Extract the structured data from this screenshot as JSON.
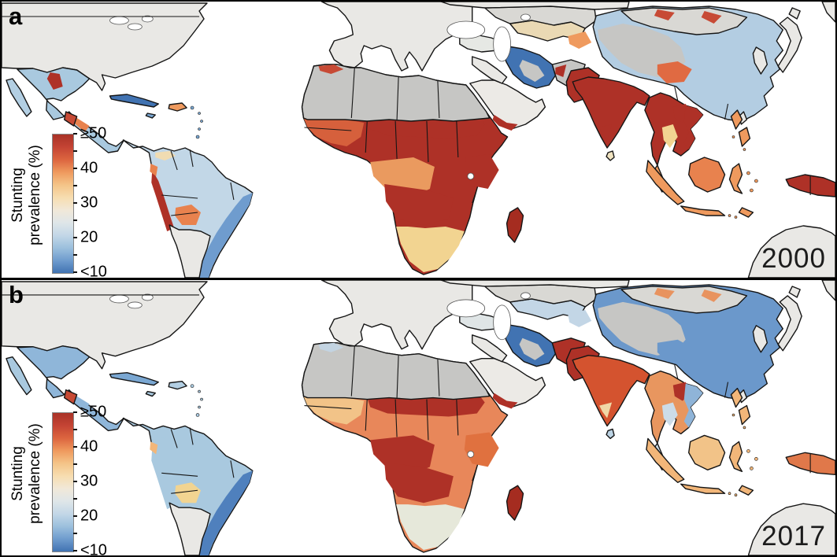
{
  "figure": {
    "background": "#ffffff",
    "border_color": "#000000",
    "stroke_color": "#151515",
    "colorbar_stops": [
      "#a93227",
      "#c44434",
      "#dc653f",
      "#ef9a5e",
      "#f4c488",
      "#f7ddb0",
      "#f1e8d8",
      "#dfe6e8",
      "#c3d7e7",
      "#9cc0dd",
      "#6f9cce",
      "#4173b2"
    ]
  },
  "panels": [
    {
      "label": "a",
      "year": "2000",
      "legend": {
        "title_line1": "Stunting",
        "title_line2": "prevalence (%)",
        "ticks": [
          "≥50",
          "40",
          "30",
          "20",
          "<10"
        ]
      },
      "fills": {
        "ocean": "#ffffff",
        "canada_usa": "#e9e8e5",
        "mexico": "#a9c9df",
        "baja": "#b3cfe3",
        "mex_patch_north": "#ae3127",
        "mex_south": "#e8824e",
        "guatemala": "#c74a35",
        "cuba": "#4173b2",
        "hispaniola": "#ef9a5e",
        "jamaica": "#7aa7d2",
        "antilles": "#7aa7d2",
        "sa_base": "#c2d7e7",
        "venezuela_patch": "#f0dcb2",
        "brazil_east": "#6f9cce",
        "peru": "#ae3127",
        "bolivia": "#e8824e",
        "ecuador": "#e8824e",
        "southern_cone": "#e9e8e5",
        "europe": "#e9e8e5",
        "africa_base": "#ae3127",
        "w_africa": "#d6603c",
        "drc": "#ea9a5f",
        "angola_zambia": "#ae3127",
        "east_africa": "#ae3127",
        "south_band": "#f2d491",
        "sahel_red": "#ae3127",
        "sahara": "#c6c6c4",
        "atlas": "#c74a35",
        "madagascar": "#a52c20",
        "arabia": "#eceae6",
        "yemen": "#ae3127",
        "iraq": "#e9e8e5",
        "turkey": "#e6e8e4",
        "iran": "#4173b2",
        "iran_mask": "#c6c6c4",
        "central_asia": "#ead9b4",
        "ca_orange": "#ef9a5e",
        "kaz": "#d9d8d4",
        "russia_w": "#e9e8e5",
        "russia_ne": "#e9e8e5",
        "china": "#b3cde2",
        "tibet_mask": "#c6c6c4",
        "china_patch": "#e06a42",
        "mongolia": "#d9d8d4",
        "mongolia_red": "#c74a35",
        "korea": "#e9e8e5",
        "japan": "#e9e8e5",
        "taiwan": "#e9e8e5",
        "afghanistan": "#c6c6c4",
        "afg_red": "#ae3127",
        "pakistan": "#ae3127",
        "india": "#ae3127",
        "india_south": "#ae3127",
        "sri_lanka": "#f0e3c0",
        "sea_mainland": "#ae3127",
        "laos": "#ae3127",
        "vietnam": "#ae3127",
        "thailand": "#f2d491",
        "malay_pen": "#ef9a5e",
        "sumatra": "#ef9a5e",
        "java": "#ef9a5e",
        "borneo": "#e8824e",
        "sulawesi": "#ef9a5e",
        "timor": "#ef9a5e",
        "philippines": "#ef9a5e",
        "png": "#ae3127",
        "australia": "#e9e8e5"
      }
    },
    {
      "label": "b",
      "year": "2017",
      "legend": {
        "title_line1": "Stunting",
        "title_line2": "prevalence (%)",
        "ticks": [
          "≥50",
          "40",
          "30",
          "20",
          "<10"
        ]
      },
      "fills": {
        "ocean": "#ffffff",
        "canada_usa": "#e9e8e5",
        "mexico": "#8fb6d9",
        "baja": "#a9c9df",
        "mex_patch_north": "#8fb6d9",
        "mex_south": "#8fb6d9",
        "guatemala": "#c74a35",
        "cuba": "#7aa7d2",
        "hispaniola": "#b3cfe3",
        "jamaica": "#a9c9df",
        "antilles": "#a9c9df",
        "sa_base": "#a9c9df",
        "venezuela_patch": "#a9c9df",
        "brazil_east": "#4f80bd",
        "peru": "#a9c9df",
        "bolivia": "#f2d491",
        "ecuador": "#f2b679",
        "southern_cone": "#e9e8e5",
        "europe": "#e9e8e5",
        "africa_base": "#e8875a",
        "w_africa": "#f2c388",
        "drc": "#ae3127",
        "angola_zambia": "#ae3127",
        "east_africa": "#e0713f",
        "south_band": "#e6e8da",
        "sahel_red": "#ae3127",
        "sahara": "#c6c6c4",
        "atlas": "#c3d4e2",
        "madagascar": "#a52c20",
        "arabia": "#eceae6",
        "yemen": "#ae3127",
        "iraq": "#e9e8e5",
        "turkey": "#dfe5e6",
        "iran": "#4173b2",
        "iran_mask": "#c6c6c4",
        "central_asia": "#c3d6e6",
        "ca_orange": "#c3d6e6",
        "kaz": "#d9d8d4",
        "russia_w": "#e9e8e5",
        "russia_ne": "#e9e8e5",
        "china": "#6b98cb",
        "tibet_mask": "#c6c6c4",
        "china_patch": "#6b98cb",
        "mongolia": "#d9d8d4",
        "mongolia_red": "#e8935f",
        "korea": "#e9e8e5",
        "japan": "#e9e8e5",
        "taiwan": "#e9e8e5",
        "afghanistan": "#ae3127",
        "afg_red": "#ae3127",
        "pakistan": "#ae3127",
        "india": "#d4532f",
        "india_south": "#f0d7a6",
        "sri_lanka": "#bcd3e4",
        "sea_mainland": "#e8965f",
        "laos": "#ae3127",
        "vietnam": "#8fb4d8",
        "thailand": "#ccdce8",
        "malay_pen": "#ccdce8",
        "sumatra": "#f2b679",
        "java": "#f2b679",
        "borneo": "#f2c388",
        "sulawesi": "#f2b679",
        "timor": "#f2b679",
        "philippines": "#f2b679",
        "png": "#e0784a",
        "australia": "#e9e8e5"
      }
    }
  ]
}
